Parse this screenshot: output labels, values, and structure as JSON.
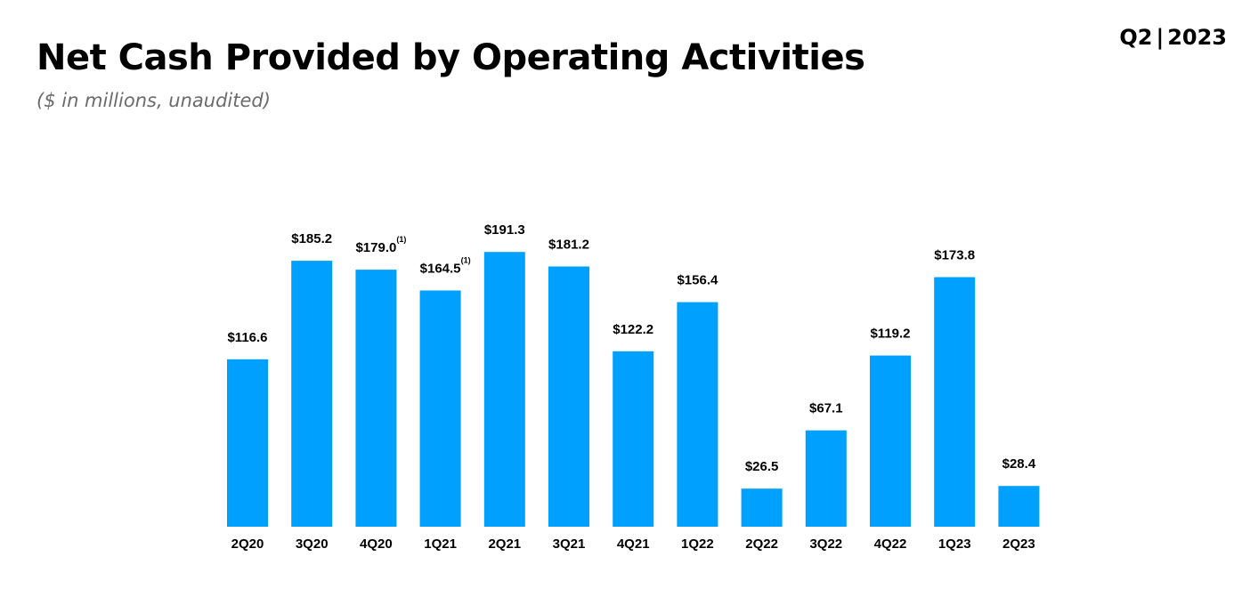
{
  "header": {
    "title": "Net Cash Provided by Operating Activities",
    "subtitle": "($ in millions, unaudited)",
    "period_quarter": "Q2",
    "period_separator": "|",
    "period_year": "2023"
  },
  "colors": {
    "bar": "#00A0FF",
    "text": "#000000",
    "subtitle": "#6b6b6b"
  },
  "chart_data": {
    "type": "bar",
    "title": "Net Cash Provided by Operating Activities",
    "subtitle": "($ in millions, unaudited)",
    "xlabel": "",
    "ylabel": "",
    "ylim": [
      0,
      200
    ],
    "grid": false,
    "legend": "none",
    "categories": [
      "2Q20",
      "3Q20",
      "4Q20",
      "1Q21",
      "2Q21",
      "3Q21",
      "4Q21",
      "1Q22",
      "2Q22",
      "3Q22",
      "4Q22",
      "1Q23",
      "2Q23"
    ],
    "values": [
      116.6,
      185.2,
      179.0,
      164.5,
      191.3,
      181.2,
      122.2,
      156.4,
      26.5,
      67.1,
      119.2,
      173.8,
      28.4
    ],
    "labels": [
      "$116.6",
      "$185.2",
      "$179.0",
      "$164.5",
      "$191.3",
      "$181.2",
      "$122.2",
      "$156.4",
      "$26.5",
      "$67.1",
      "$119.2",
      "$173.8",
      "$28.4"
    ],
    "footnotes": [
      "",
      "",
      "(1)",
      "(1)",
      "",
      "",
      "",
      "",
      "",
      "",
      "",
      "",
      ""
    ]
  }
}
